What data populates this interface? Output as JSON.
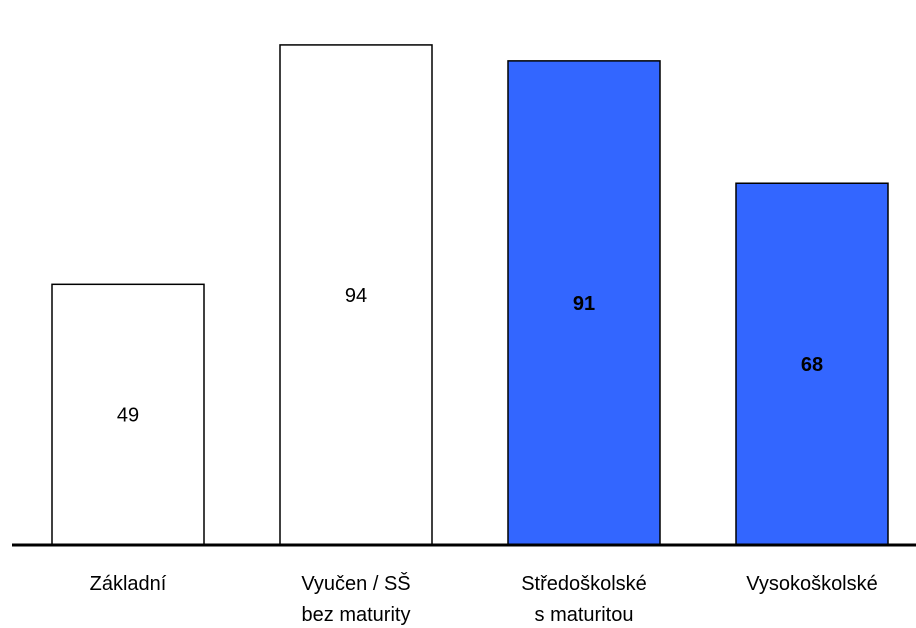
{
  "chart_data": {
    "type": "bar",
    "categories": [
      [
        "Základní"
      ],
      [
        "Vyučen / SŠ",
        "bez maturity"
      ],
      [
        "Středoškolské",
        "s maturitou"
      ],
      [
        "Vysokoškolské"
      ]
    ],
    "values": [
      49,
      94,
      91,
      68
    ],
    "bar_colors": [
      "#ffffff",
      "#ffffff",
      "#3366ff",
      "#3366ff"
    ],
    "label_bold": [
      false,
      false,
      true,
      true
    ],
    "title": "",
    "xlabel": "",
    "ylabel": "",
    "ylim": [
      0,
      100
    ],
    "grid": false,
    "legend": "none"
  }
}
